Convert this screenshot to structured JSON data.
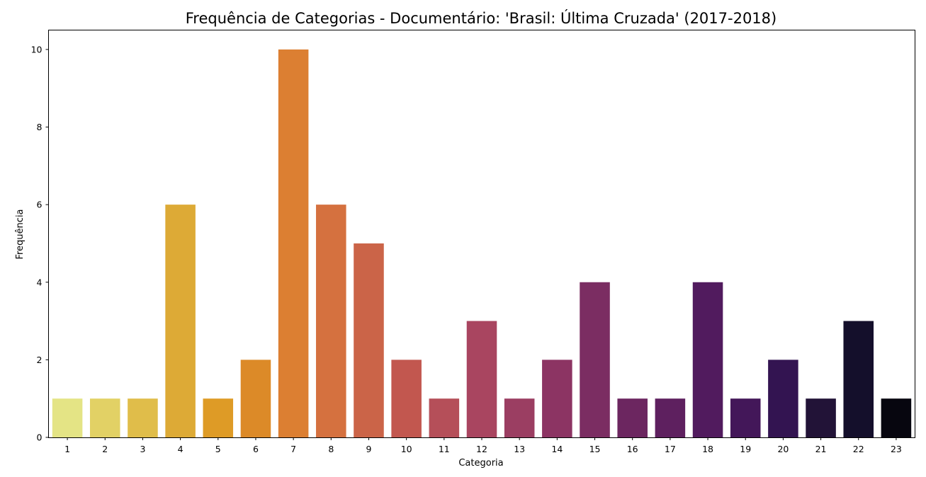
{
  "chart_data": {
    "type": "bar",
    "title": "Frequência de Categorias - Documentário: 'Brasil: Última Cruzada' (2017-2018)",
    "xlabel": "Categoria",
    "ylabel": "Frequência",
    "categories": [
      "1",
      "2",
      "3",
      "4",
      "5",
      "6",
      "7",
      "8",
      "9",
      "10",
      "11",
      "12",
      "13",
      "14",
      "15",
      "16",
      "17",
      "18",
      "19",
      "20",
      "21",
      "22",
      "23"
    ],
    "values": [
      1,
      1,
      1,
      6,
      1,
      2,
      10,
      6,
      5,
      2,
      1,
      3,
      1,
      2,
      4,
      1,
      1,
      4,
      1,
      2,
      1,
      3,
      1
    ],
    "ylim": [
      0,
      10.5
    ],
    "yticks": [
      0,
      2,
      4,
      6,
      8,
      10
    ],
    "grid": false,
    "palette": "inferno_r",
    "colors": [
      "#e4e485",
      "#e2d165",
      "#e0bd4a",
      "#ddaa36",
      "#de9b26",
      "#dc8a28",
      "#dc7f32",
      "#d5713f",
      "#cb6448",
      "#c2574f",
      "#b54f59",
      "#a94560",
      "#9b3e62",
      "#8c3463",
      "#7b2d62",
      "#6c2660",
      "#5e205f",
      "#511b5e",
      "#431759",
      "#331451",
      "#221337",
      "#140f2b",
      "#07060f"
    ]
  }
}
